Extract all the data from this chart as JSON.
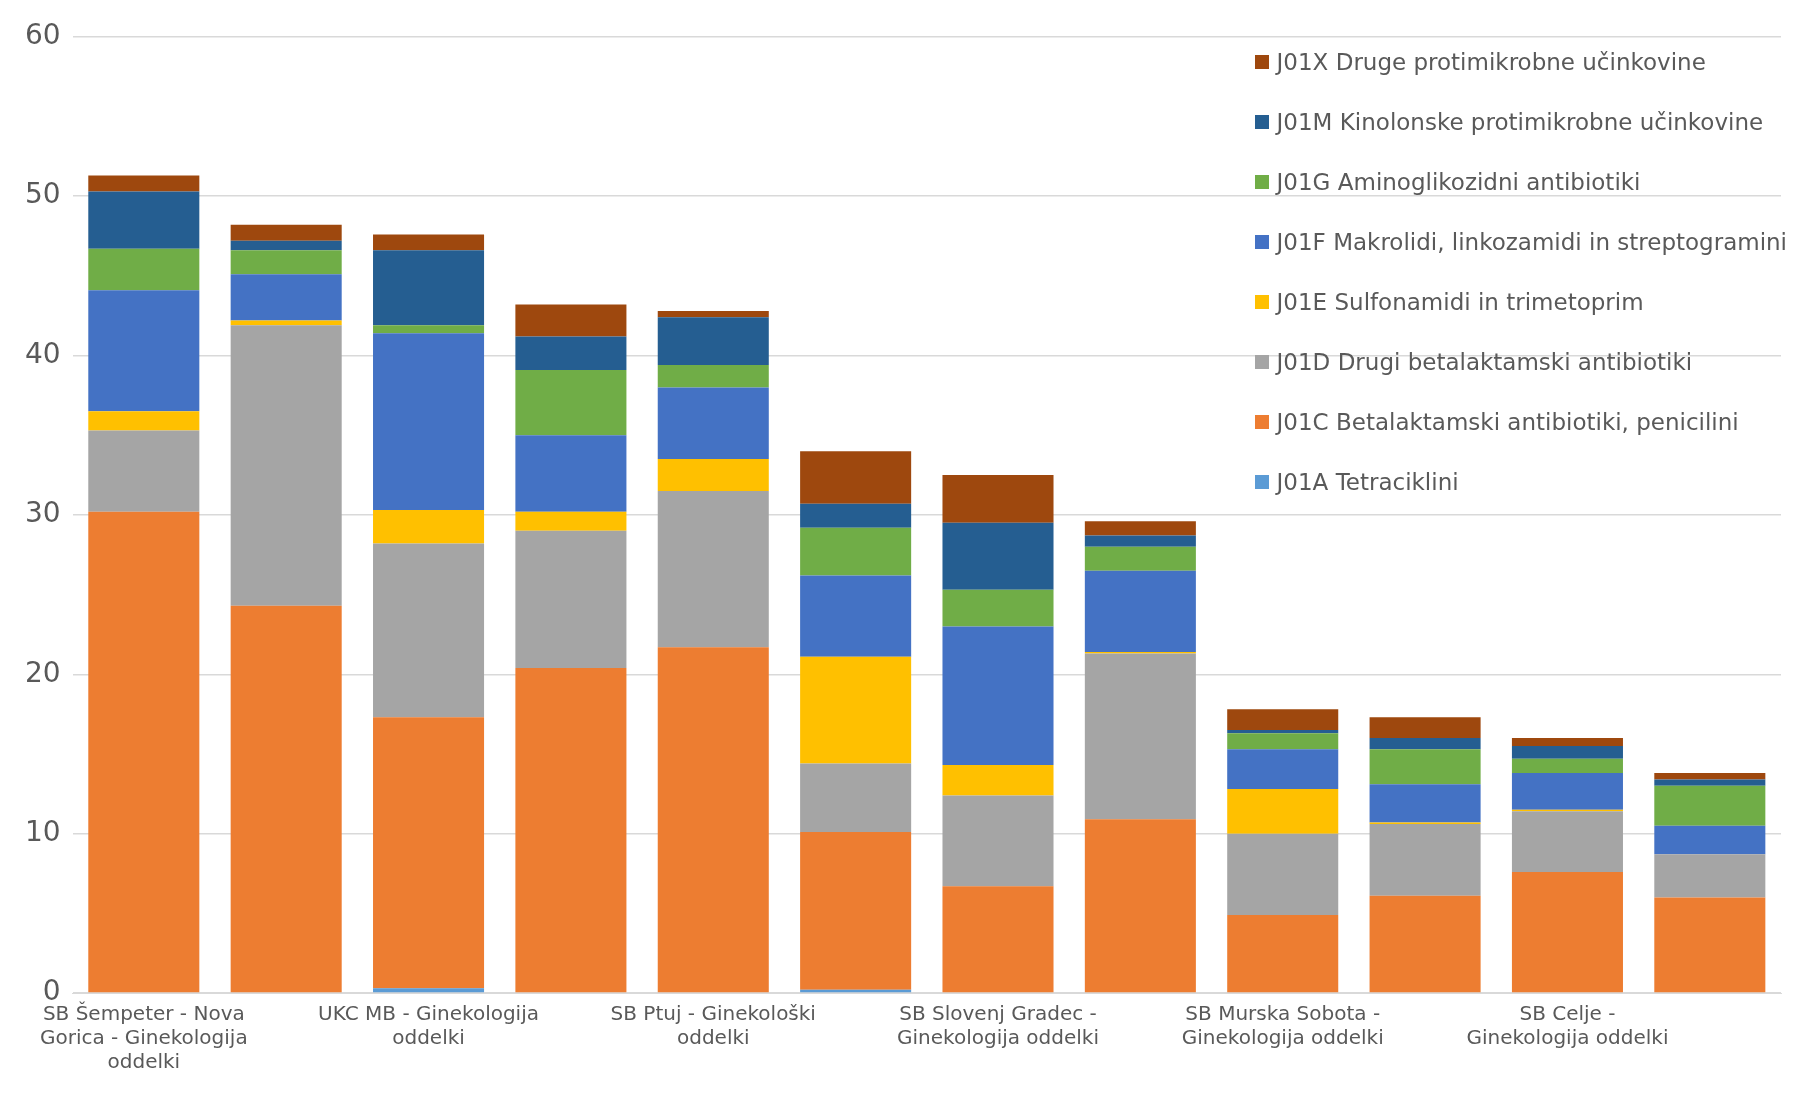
{
  "chart_data": {
    "type": "bar",
    "stacked": true,
    "legend": "top right",
    "grid": "y",
    "categories": [
      "SB Šempeter - Nova Gorica - Ginekologija oddelki",
      null,
      "UKC MB - Ginekologija oddelki",
      null,
      "SB Ptuj - Ginekološki oddelki",
      null,
      "SB Slovenj Gradec - Ginekologija oddelki",
      null,
      "SB Murska Sobota - Ginekologija oddelki",
      null,
      "SB Celje - Ginekologija oddelki",
      null
    ],
    "ylim": [
      0,
      60
    ],
    "yticks": [
      0,
      10,
      20,
      30,
      40,
      50,
      60
    ],
    "series": [
      {
        "name": "J01A Tetraciklini",
        "color": "#5b9bd5",
        "values": [
          0,
          0,
          0.3,
          0,
          0,
          0.2,
          0,
          0,
          0,
          0,
          0,
          0
        ]
      },
      {
        "name": "J01C Betalaktamski antibiotiki, penicilini",
        "color": "#ed7d31",
        "values": [
          30.2,
          24.3,
          17.0,
          20.4,
          21.7,
          9.9,
          6.7,
          10.9,
          4.9,
          6.1,
          7.6,
          6.0
        ]
      },
      {
        "name": "J01D Drugi betalaktamski antibiotiki",
        "color": "#a5a5a5",
        "values": [
          5.1,
          17.6,
          10.9,
          8.6,
          9.8,
          4.3,
          5.7,
          10.4,
          5.1,
          4.5,
          3.8,
          2.7
        ]
      },
      {
        "name": "J01E Sulfonamidi in trimetoprim",
        "color": "#ffc000",
        "values": [
          1.2,
          0.3,
          2.1,
          1.2,
          2.0,
          6.7,
          1.9,
          0.1,
          2.8,
          0.1,
          0.1,
          0
        ]
      },
      {
        "name": "J01F Makrolidi, linkozamidi in streptogramini",
        "color": "#4472c4",
        "values": [
          7.6,
          2.9,
          11.1,
          4.8,
          4.5,
          5.1,
          8.7,
          5.1,
          2.5,
          2.4,
          2.3,
          1.8
        ]
      },
      {
        "name": "J01G Aminoglikozidni antibiotiki",
        "color": "#70ad47",
        "values": [
          2.6,
          1.5,
          0.5,
          4.1,
          1.4,
          3.0,
          2.3,
          1.5,
          1.0,
          2.2,
          0.9,
          2.5
        ]
      },
      {
        "name": "J01M Kinolonske protimikrobne učinkovine",
        "color": "#255e91",
        "values": [
          3.6,
          0.6,
          4.7,
          2.1,
          3.0,
          1.5,
          4.2,
          0.7,
          0.2,
          0.7,
          0.8,
          0.4
        ]
      },
      {
        "name": "J01X Druge protimikrobne učinkovine",
        "color": "#9e480e",
        "values": [
          1.0,
          1.0,
          1.0,
          2.0,
          0.4,
          3.3,
          3.0,
          0.9,
          1.3,
          1.3,
          0.5,
          0.4
        ]
      }
    ]
  }
}
